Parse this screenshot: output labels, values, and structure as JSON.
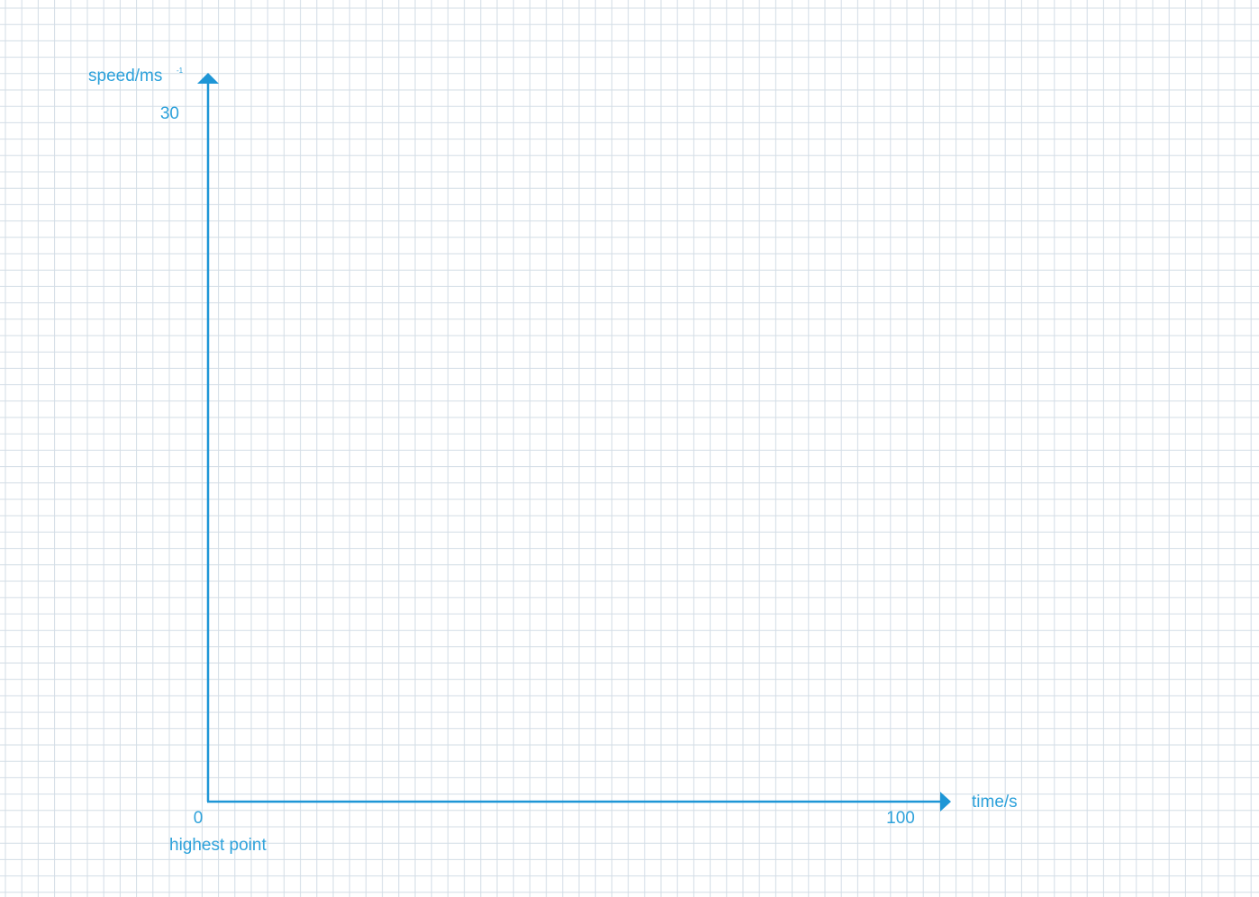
{
  "chart_data": {
    "type": "line",
    "x": [],
    "series": [],
    "title": "",
    "xlabel": "time/s",
    "ylabel_main": "speed/ms",
    "ylabel_superscript": "-1",
    "xlim": [
      0,
      100
    ],
    "ylim": [
      0,
      30
    ],
    "x_ticks": [
      {
        "value": 0,
        "label": "0"
      },
      {
        "value": 100,
        "label": "100"
      }
    ],
    "y_ticks": [
      {
        "value": 30,
        "label": "30"
      }
    ],
    "annotations": [
      {
        "x": 0,
        "text": "highest point"
      }
    ],
    "grid": true,
    "axis_color": "#1e96d6",
    "grid_color": "#d3dde6",
    "text_color": "#2ea2db"
  }
}
